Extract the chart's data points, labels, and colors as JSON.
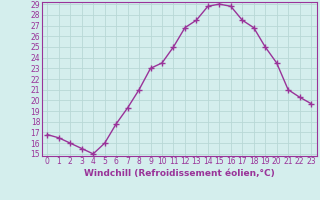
{
  "xlabel": "Windchill (Refroidissement éolien,°C)",
  "x": [
    0,
    1,
    2,
    3,
    4,
    5,
    6,
    7,
    8,
    9,
    10,
    11,
    12,
    13,
    14,
    15,
    16,
    17,
    18,
    19,
    20,
    21,
    22,
    23
  ],
  "y": [
    16.8,
    16.5,
    16.0,
    15.5,
    15.0,
    16.0,
    17.8,
    19.3,
    21.0,
    23.0,
    23.5,
    25.0,
    26.8,
    27.5,
    28.8,
    29.0,
    28.8,
    27.5,
    26.8,
    25.0,
    23.5,
    21.0,
    20.3,
    19.7
  ],
  "line_color": "#993399",
  "marker": "+",
  "marker_size": 4,
  "bg_color": "#d4eeed",
  "grid_color": "#b8d8d6",
  "ylim": [
    15,
    29
  ],
  "xlim": [
    -0.5,
    23.5
  ],
  "yticks": [
    15,
    16,
    17,
    18,
    19,
    20,
    21,
    22,
    23,
    24,
    25,
    26,
    27,
    28,
    29
  ],
  "xticks": [
    0,
    1,
    2,
    3,
    4,
    5,
    6,
    7,
    8,
    9,
    10,
    11,
    12,
    13,
    14,
    15,
    16,
    17,
    18,
    19,
    20,
    21,
    22,
    23
  ],
  "tick_fontsize": 5.5,
  "xlabel_fontsize": 6.5,
  "spine_color": "#993399"
}
